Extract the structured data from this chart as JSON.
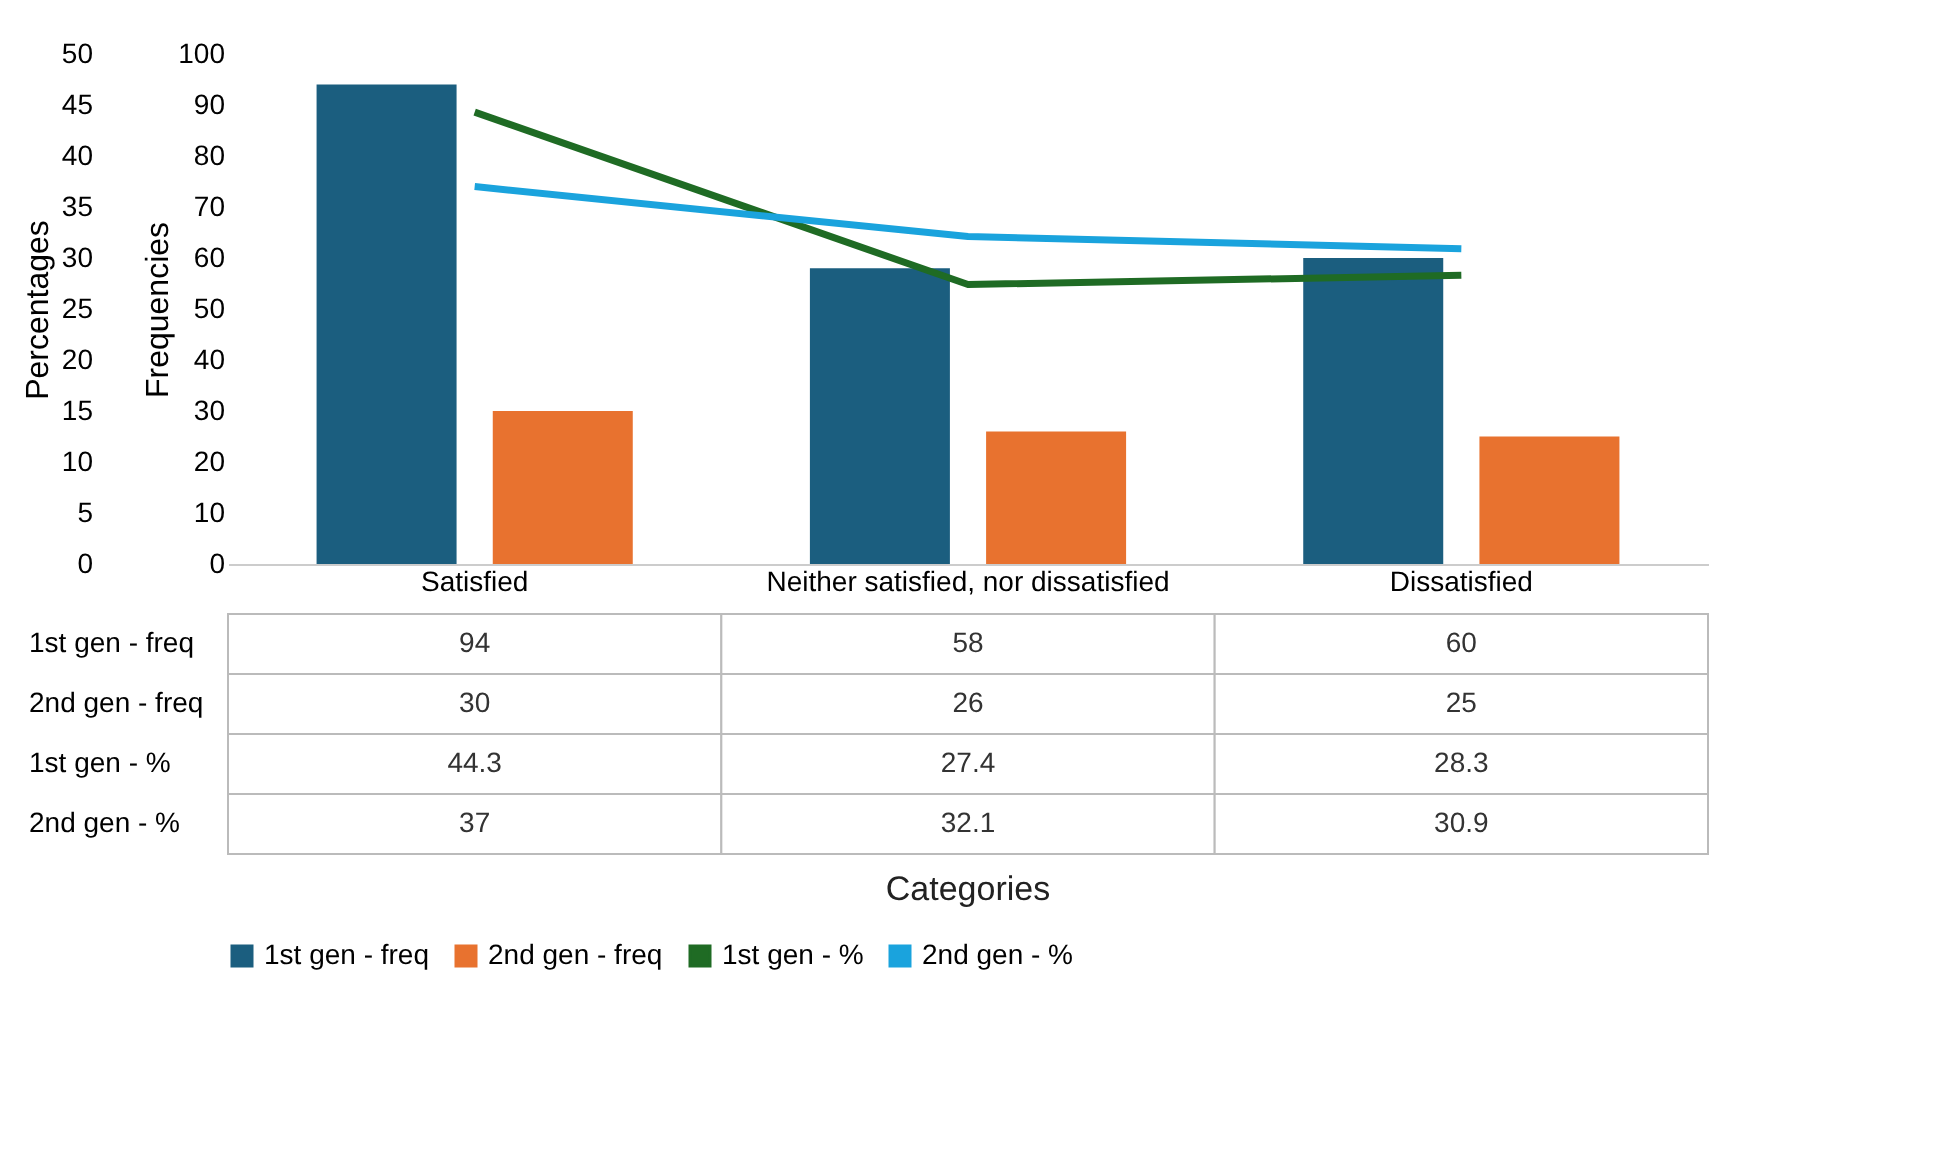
{
  "chart_data": {
    "type": "bar",
    "categories": [
      "Satisfied",
      "Neither satisfied, nor dissatisfied",
      "Dissatisfied"
    ],
    "series": [
      {
        "name": "1st gen - freq",
        "color": "#1b5e7f",
        "axis": "y2",
        "values": [
          94,
          58,
          60
        ]
      },
      {
        "name": "2nd gen - freq",
        "color": "#e8722f",
        "axis": "y2",
        "values": [
          30,
          26,
          25
        ]
      },
      {
        "name": "1st gen - %",
        "type": "line",
        "color": "#1f6b24",
        "values": [
          44.3,
          27.4,
          28.3
        ]
      },
      {
        "name": "2nd gen - %",
        "type": "line",
        "color": "#1aa3dd",
        "values": [
          37,
          32.1,
          30.9
        ]
      }
    ],
    "annotations": [
      "Categories"
    ],
    "ylabel": "Percentages",
    "y2label": "Frequencies",
    "ylim": [
      0,
      50
    ],
    "yticks": [
      0,
      5,
      10,
      15,
      20,
      25,
      30,
      35,
      40,
      45,
      50
    ],
    "y2lim": [
      0,
      100
    ],
    "y2ticks": [
      0,
      10,
      20,
      30,
      40,
      50,
      60,
      70,
      80,
      90,
      100
    ],
    "data_labels": true,
    "legend": "bottom",
    "grid": false
  }
}
